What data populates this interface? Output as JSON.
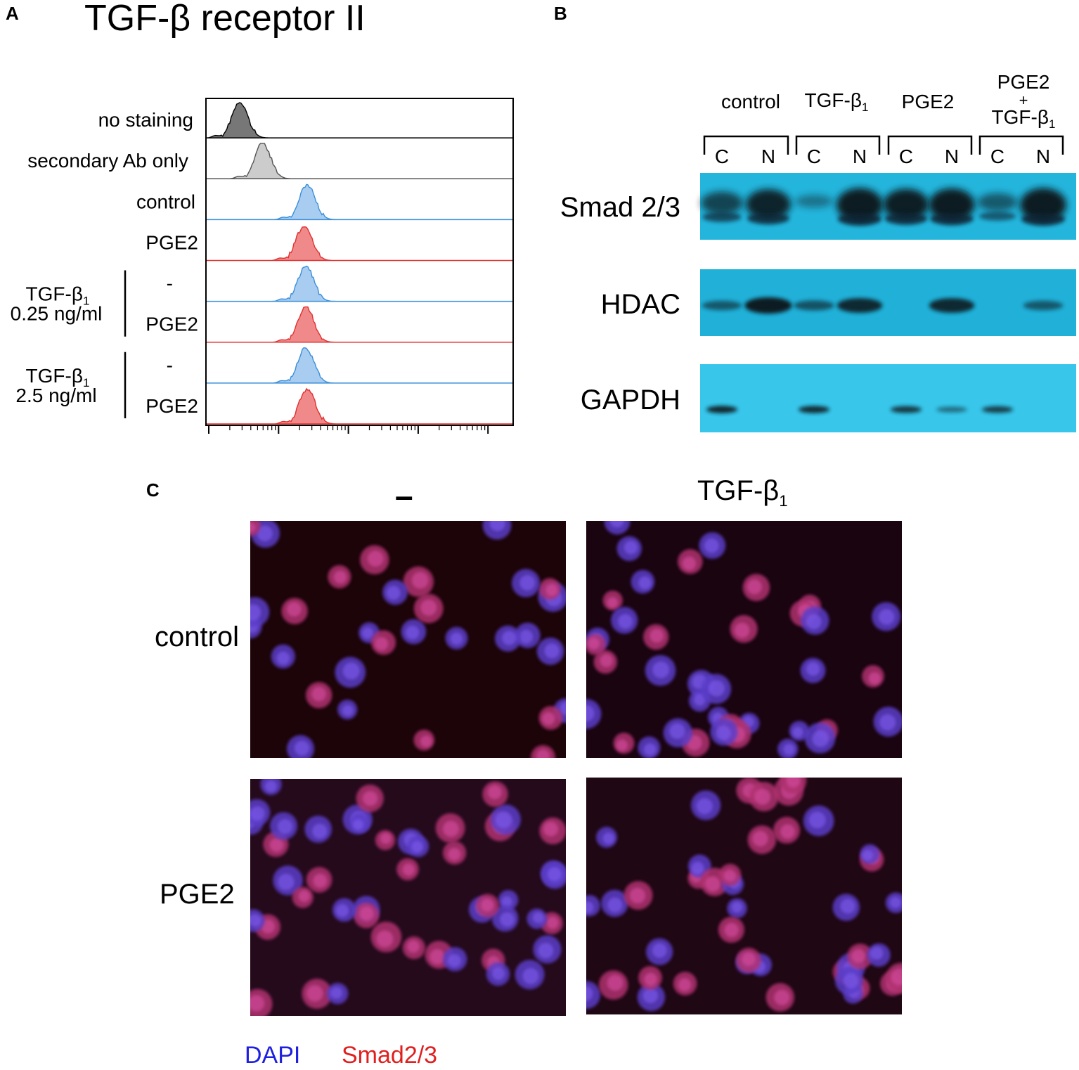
{
  "panelA": {
    "letter": "A",
    "title": "TGF-β receptor II",
    "rows": [
      {
        "label": "no staining",
        "fill": "#777777",
        "stroke": "#000000",
        "peak": 0.11
      },
      {
        "label": "secondary Ab only",
        "fill": "#cccccc",
        "stroke": "#555555",
        "peak": 0.185
      },
      {
        "label": "control",
        "fill": "#a9cdf0",
        "stroke": "#3b8fd9",
        "peak": 0.33
      },
      {
        "label": "PGE2",
        "fill": "#f08a8a",
        "stroke": "#e03030",
        "peak": 0.32
      },
      {
        "label": "-",
        "fill": "#a9cdf0",
        "stroke": "#3b8fd9",
        "peak": 0.325
      },
      {
        "label": "PGE2",
        "fill": "#f08a8a",
        "stroke": "#e03030",
        "peak": 0.325
      },
      {
        "label": "-",
        "fill": "#a9cdf0",
        "stroke": "#3b8fd9",
        "peak": 0.325
      },
      {
        "label": "PGE2",
        "fill": "#f08a8a",
        "stroke": "#e03030",
        "peak": 0.33
      }
    ],
    "groups": [
      {
        "name": "TGF-β",
        "sub": "1",
        "dose": "0.25 ng/ml"
      },
      {
        "name": "TGF-β",
        "sub": "1",
        "dose": "2.5 ng/ml"
      }
    ]
  },
  "panelB": {
    "letter": "B",
    "conditions": [
      {
        "line1": "control"
      },
      {
        "line1": "TGF-β",
        "sub": "1"
      },
      {
        "line1": "PGE2"
      },
      {
        "line1": "PGE2",
        "line2": "+",
        "line3": "TGF-β",
        "sub": "1"
      }
    ],
    "fractions": [
      "C",
      "N"
    ],
    "blots": [
      {
        "label": "Smad 2/3",
        "color": "#24b5dc"
      },
      {
        "label": "HDAC",
        "color": "#21b0d8"
      },
      {
        "label": "GAPDH",
        "color": "#38c6ea"
      }
    ]
  },
  "panelC": {
    "letter": "C",
    "col1": "–",
    "col2": "TGF-β",
    "col2_sub": "1",
    "row1": "control",
    "row2": "PGE2",
    "legend": [
      {
        "text": "DAPI",
        "color": "#1f1fe0"
      },
      {
        "text": "Smad2/3",
        "color": "#e01f1f"
      }
    ]
  }
}
